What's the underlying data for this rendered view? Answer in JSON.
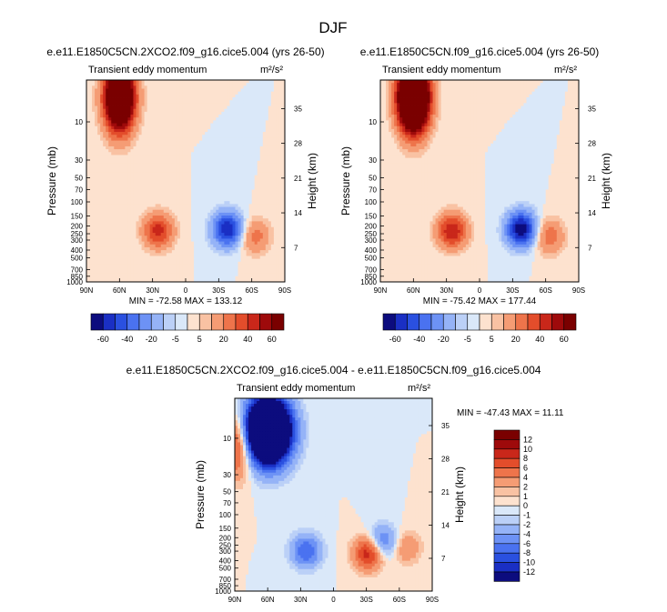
{
  "figure_title": "DJF",
  "chart_data": [
    {
      "type": "heatmap",
      "title": "e.e11.E1850C5CN.2XCO2.f09_g16.cice5.004 (yrs 26-50)",
      "subtitle": "Transient eddy momentum",
      "units": "m²/s²",
      "ylabel": "Pressure (mb)",
      "ylabel_right": "Height (km)",
      "xticks": [
        "90N",
        "60N",
        "30N",
        "0",
        "30S",
        "60S",
        "90S"
      ],
      "yticks": [
        "10",
        "30",
        "50",
        "70",
        "100",
        "150",
        "200",
        "250",
        "300",
        "400",
        "500",
        "700",
        "850",
        "1000"
      ],
      "yticks_right": [
        "35",
        "28",
        "21",
        "14",
        "7"
      ],
      "stats": "MIN = -72.58  MAX = 133.12",
      "colorbar": {
        "orientation": "horizontal",
        "labels": [
          "-60",
          "-40",
          "-20",
          "-5",
          "5",
          "20",
          "40",
          "60"
        ]
      },
      "features": [
        {
          "lat": 60,
          "p": 5,
          "value": 130
        },
        {
          "lat": 25,
          "p": 230,
          "value": 45
        },
        {
          "lat": -38,
          "p": 220,
          "value": -60
        },
        {
          "lat": -63,
          "p": 270,
          "value": 25
        }
      ]
    },
    {
      "type": "heatmap",
      "title": "e.e11.E1850C5CN.f09_g16.cice5.004 (yrs 26-50)",
      "subtitle": "Transient eddy momentum",
      "units": "m²/s²",
      "ylabel": "Pressure (mb)",
      "ylabel_right": "Height (km)",
      "xticks": [
        "90N",
        "60N",
        "30N",
        "0",
        "30S",
        "60S",
        "90S"
      ],
      "yticks": [
        "10",
        "30",
        "50",
        "70",
        "100",
        "150",
        "200",
        "250",
        "300",
        "400",
        "500",
        "700",
        "850",
        "1000"
      ],
      "yticks_right": [
        "35",
        "28",
        "21",
        "14",
        "7"
      ],
      "stats": "MIN = -75.42  MAX = 177.44",
      "colorbar": {
        "orientation": "horizontal",
        "labels": [
          "-60",
          "-40",
          "-20",
          "-5",
          "5",
          "20",
          "40",
          "60"
        ]
      },
      "features": [
        {
          "lat": 60,
          "p": 5,
          "value": 175
        },
        {
          "lat": 25,
          "p": 230,
          "value": 50
        },
        {
          "lat": -38,
          "p": 220,
          "value": -70
        },
        {
          "lat": -63,
          "p": 270,
          "value": 28
        }
      ]
    },
    {
      "type": "heatmap",
      "title": "e.e11.E1850C5CN.2XCO2.f09_g16.cice5.004 - e.e11.E1850C5CN.f09_g16.cice5.004",
      "subtitle": "Transient eddy momentum",
      "units": "m²/s²",
      "ylabel": "Pressure (mb)",
      "ylabel_right": "Height (km)",
      "xticks": [
        "90N",
        "60N",
        "30N",
        "0",
        "30S",
        "60S",
        "90S"
      ],
      "yticks": [
        "10",
        "30",
        "50",
        "70",
        "100",
        "150",
        "200",
        "250",
        "300",
        "400",
        "500",
        "700",
        "850",
        "1000"
      ],
      "yticks_right": [
        "35",
        "28",
        "21",
        "14",
        "7"
      ],
      "stats": "MIN = -47.43  MAX =  11.11",
      "colorbar": {
        "orientation": "vertical",
        "labels": [
          "12",
          "10",
          "8",
          "6",
          "4",
          "2",
          "1",
          "0",
          "-1",
          "-2",
          "-4",
          "-6",
          "-8",
          "-10",
          "-12"
        ]
      },
      "features": [
        {
          "lat": 60,
          "p": 8,
          "value": -40
        },
        {
          "lat": 86,
          "p": 12,
          "value": 10
        },
        {
          "lat": 25,
          "p": 300,
          "value": -8
        },
        {
          "lat": -32,
          "p": 320,
          "value": 10
        },
        {
          "lat": -45,
          "p": 230,
          "value": -7
        },
        {
          "lat": -66,
          "p": 270,
          "value": 4
        }
      ]
    }
  ]
}
